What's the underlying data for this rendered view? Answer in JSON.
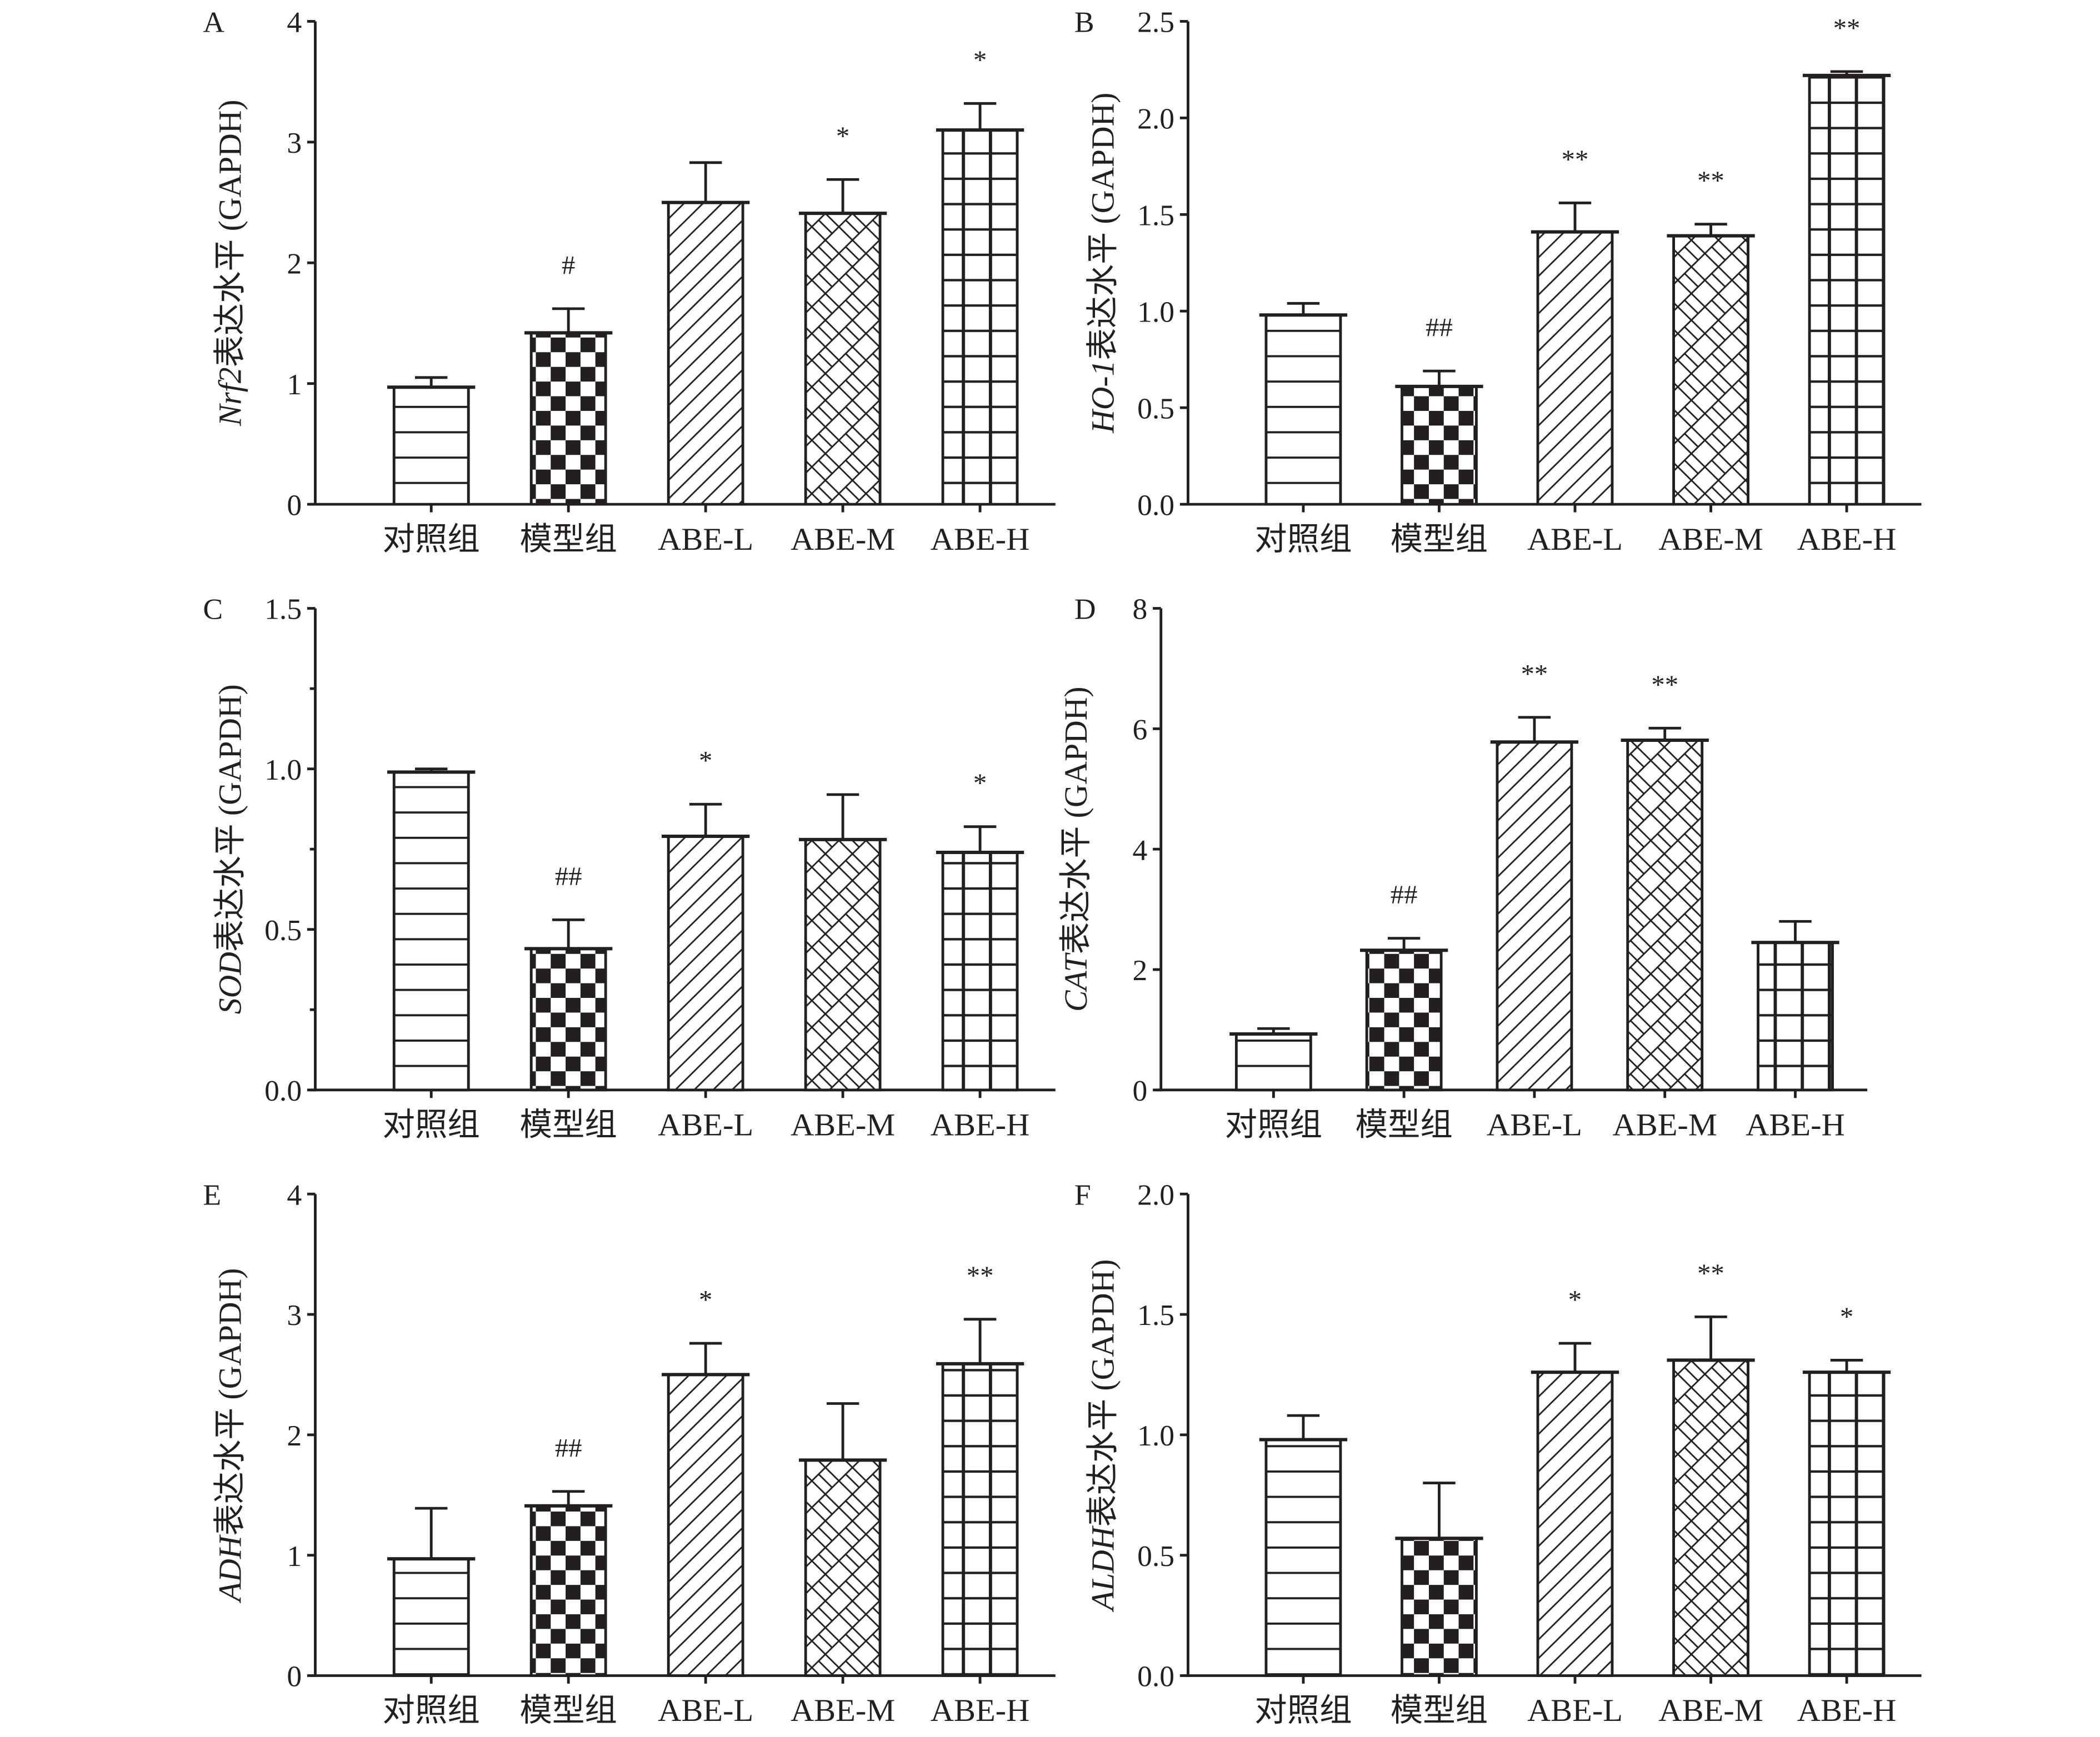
{
  "chart_data": [
    {
      "type": "bar",
      "panel": "A",
      "gene": "Nrf2",
      "ylabel_suffix": "表达水平 (GAPDH)",
      "categories": [
        "对照组",
        "模型组",
        "ABE-L",
        "ABE-M",
        "ABE-H"
      ],
      "values": [
        0.97,
        1.42,
        2.5,
        2.41,
        3.1
      ],
      "error_upper": [
        1.05,
        1.62,
        2.83,
        2.69,
        3.32
      ],
      "annotations": [
        "",
        "#",
        "",
        "*",
        "*"
      ],
      "yticks": [
        "0",
        "1",
        "2",
        "3",
        "4"
      ],
      "tick_values": [
        0,
        1,
        2,
        3,
        4
      ],
      "ylim": [
        0,
        4
      ],
      "minor": false
    },
    {
      "type": "bar",
      "panel": "B",
      "gene": "HO-1",
      "ylabel_suffix": "表达水平 (GAPDH)",
      "categories": [
        "对照组",
        "模型组",
        "ABE-L",
        "ABE-M",
        "ABE-H"
      ],
      "values": [
        0.98,
        0.61,
        1.41,
        1.39,
        2.22
      ],
      "error_upper": [
        1.04,
        0.69,
        1.56,
        1.45,
        2.24
      ],
      "annotations": [
        "",
        "##",
        "**",
        "**",
        "**"
      ],
      "yticks": [
        "0.0",
        "0.5",
        "1.0",
        "1.5",
        "2.0",
        "2.5"
      ],
      "tick_values": [
        0,
        0.5,
        1.0,
        1.5,
        2.0,
        2.5
      ],
      "ylim": [
        0,
        2.5
      ],
      "minor": false
    },
    {
      "type": "bar",
      "panel": "C",
      "gene": "SOD",
      "ylabel_suffix": "表达水平 (GAPDH)",
      "categories": [
        "对照组",
        "模型组",
        "ABE-L",
        "ABE-M",
        "ABE-H"
      ],
      "values": [
        0.99,
        0.44,
        0.79,
        0.78,
        0.74
      ],
      "error_upper": [
        1.0,
        0.53,
        0.89,
        0.92,
        0.82
      ],
      "annotations": [
        "",
        "##",
        "*",
        "",
        "*"
      ],
      "yticks": [
        "0.0",
        "0.5",
        "1.0",
        "1.5"
      ],
      "tick_values": [
        0,
        0.5,
        1.0,
        1.5
      ],
      "ylim": [
        0,
        1.5
      ],
      "minor": true
    },
    {
      "type": "bar",
      "panel": "D",
      "gene": "CAT",
      "ylabel_suffix": "表达水平 (GAPDH)",
      "categories": [
        "对照组",
        "模型组",
        "ABE-L",
        "ABE-M",
        "ABE-H"
      ],
      "values": [
        0.93,
        2.32,
        5.78,
        5.81,
        2.45
      ],
      "error_upper": [
        1.02,
        2.52,
        6.19,
        6.01,
        2.8
      ],
      "annotations": [
        "",
        "##",
        "**",
        "**",
        ""
      ],
      "yticks": [
        "0",
        "2",
        "4",
        "6",
        "8"
      ],
      "tick_values": [
        0,
        2,
        4,
        6,
        8
      ],
      "ylim": [
        0,
        8
      ],
      "minor": false
    },
    {
      "type": "bar",
      "panel": "E",
      "gene": "ADH",
      "ylabel_suffix": "表达水平 (GAPDH)",
      "categories": [
        "对照组",
        "模型组",
        "ABE-L",
        "ABE-M",
        "ABE-H"
      ],
      "values": [
        0.97,
        1.41,
        2.5,
        1.79,
        2.59
      ],
      "error_upper": [
        1.39,
        1.53,
        2.76,
        2.26,
        2.96
      ],
      "annotations": [
        "",
        "##",
        "*",
        "",
        "**"
      ],
      "yticks": [
        "0",
        "1",
        "2",
        "3",
        "4"
      ],
      "tick_values": [
        0,
        1,
        2,
        3,
        4
      ],
      "ylim": [
        0,
        4
      ],
      "minor": false
    },
    {
      "type": "bar",
      "panel": "F",
      "gene": "ALDH",
      "ylabel_suffix": "表达水平 (GAPDH)",
      "categories": [
        "对照组",
        "模型组",
        "ABE-L",
        "ABE-M",
        "ABE-H"
      ],
      "values": [
        0.98,
        0.57,
        1.26,
        1.31,
        1.26
      ],
      "error_upper": [
        1.08,
        0.8,
        1.38,
        1.49,
        1.31
      ],
      "annotations": [
        "",
        "",
        "*",
        "**",
        "*"
      ],
      "yticks": [
        "0.0",
        "0.5",
        "1.0",
        "1.5",
        "2.0"
      ],
      "tick_values": [
        0,
        0.5,
        1.0,
        1.5,
        2.0
      ],
      "ylim": [
        0,
        2.0
      ],
      "minor": false
    }
  ]
}
